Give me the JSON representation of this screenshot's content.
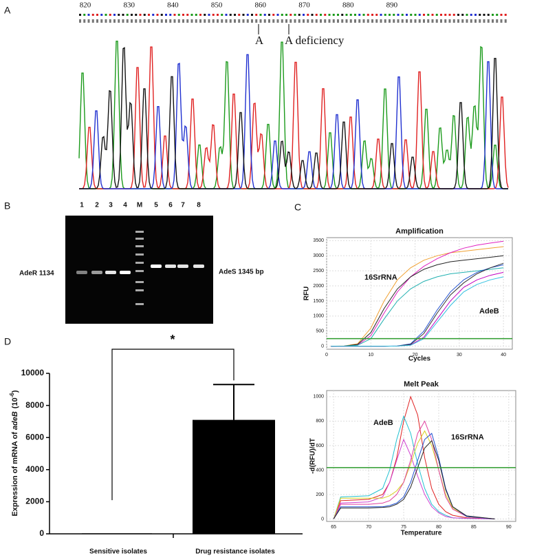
{
  "panels": {
    "a": "A",
    "b": "B",
    "c": "C",
    "d": "D"
  },
  "sequencing": {
    "positions": [
      820,
      830,
      840,
      850,
      860,
      870,
      880,
      890
    ],
    "annotations": [
      "A",
      "A deficiency"
    ]
  },
  "gel": {
    "lanes": [
      "1",
      "2",
      "3",
      "4",
      "M",
      "5",
      "6",
      "7",
      "8"
    ],
    "left_label": "AdeR 1134",
    "right_label": "AdeS 1345 bp"
  },
  "chart_data": [
    {
      "type": "line",
      "title": "Amplification",
      "x_label": "Cycles",
      "y_label": "RFU",
      "x": [
        1,
        4,
        7,
        10,
        13,
        16,
        19,
        22,
        25,
        28,
        31,
        34,
        37,
        40
      ],
      "series": [
        {
          "color": "#f0a030",
          "values": [
            0,
            10,
            80,
            600,
            1500,
            2200,
            2600,
            2850,
            3000,
            3100,
            3150,
            3200,
            3250,
            3300
          ]
        },
        {
          "color": "#e020c0",
          "values": [
            0,
            5,
            40,
            350,
            1100,
            1800,
            2300,
            2650,
            2900,
            3100,
            3250,
            3350,
            3420,
            3480
          ]
        },
        {
          "color": "#222222",
          "values": [
            0,
            5,
            60,
            450,
            1250,
            1900,
            2300,
            2550,
            2700,
            2800,
            2850,
            2900,
            2950,
            3000
          ]
        },
        {
          "color": "#20b0b0",
          "values": [
            0,
            5,
            30,
            250,
            900,
            1500,
            1900,
            2150,
            2300,
            2400,
            2450,
            2500,
            2550,
            2600
          ]
        },
        {
          "color": "#2050d0",
          "values": [
            0,
            0,
            0,
            0,
            0,
            10,
            80,
            500,
            1200,
            1800,
            2200,
            2450,
            2600,
            2700
          ]
        },
        {
          "color": "#c000c0",
          "values": [
            0,
            0,
            0,
            0,
            0,
            5,
            40,
            300,
            900,
            1500,
            1950,
            2200,
            2350,
            2450
          ]
        },
        {
          "color": "#333333",
          "values": [
            0,
            0,
            0,
            0,
            0,
            5,
            60,
            420,
            1100,
            1700,
            2100,
            2400,
            2600,
            2750
          ]
        },
        {
          "color": "#30c0e0",
          "values": [
            0,
            0,
            0,
            0,
            0,
            5,
            30,
            250,
            800,
            1350,
            1800,
            2050,
            2200,
            2300
          ]
        }
      ],
      "threshold": 250,
      "threshold_color": "#2a9a2a",
      "annotations": [
        "16SrRNA",
        "AdeB"
      ],
      "xlim": [
        0,
        42
      ],
      "ylim": [
        -100,
        3600
      ],
      "xticks": [
        0,
        10,
        20,
        30,
        40
      ],
      "yticks": [
        0,
        500,
        1000,
        1500,
        2000,
        2500,
        3000,
        3500
      ],
      "grid": true
    },
    {
      "type": "line",
      "title": "Melt Peak",
      "x_label": "Temperature",
      "y_label": "-d(RFU)/dT",
      "x": [
        65,
        66,
        70,
        72,
        73,
        74,
        75,
        76,
        77,
        78,
        79,
        80,
        81,
        82,
        84,
        88
      ],
      "series": [
        {
          "color": "#e02020",
          "values": [
            0,
            150,
            160,
            200,
            300,
            500,
            800,
            1000,
            850,
            500,
            250,
            120,
            60,
            30,
            10,
            0
          ]
        },
        {
          "color": "#20c0d0",
          "values": [
            0,
            180,
            190,
            250,
            400,
            650,
            840,
            700,
            450,
            250,
            120,
            60,
            30,
            10,
            5,
            0
          ]
        },
        {
          "color": "#d040d0",
          "values": [
            0,
            130,
            140,
            180,
            300,
            480,
            650,
            520,
            350,
            200,
            100,
            50,
            20,
            10,
            5,
            0
          ]
        },
        {
          "color": "#d8d020",
          "values": [
            0,
            170,
            170,
            170,
            190,
            230,
            300,
            450,
            620,
            720,
            600,
            400,
            200,
            90,
            20,
            0
          ]
        },
        {
          "color": "#e040a0",
          "values": [
            0,
            120,
            120,
            130,
            150,
            200,
            300,
            480,
            700,
            800,
            650,
            400,
            180,
            80,
            20,
            0
          ]
        },
        {
          "color": "#2050d0",
          "values": [
            0,
            100,
            100,
            100,
            110,
            130,
            180,
            300,
            480,
            650,
            700,
            500,
            250,
            100,
            20,
            0
          ]
        },
        {
          "color": "#222222",
          "values": [
            0,
            90,
            90,
            95,
            100,
            120,
            160,
            260,
            420,
            580,
            640,
            480,
            240,
            100,
            25,
            0
          ]
        }
      ],
      "threshold": 420,
      "threshold_color": "#2a9a2a",
      "annotations": [
        "AdeB",
        "16SrRNA"
      ],
      "xlim": [
        64,
        91
      ],
      "ylim": [
        -20,
        1050
      ],
      "xticks": [
        65,
        70,
        75,
        80,
        85,
        90
      ],
      "yticks": [
        0,
        200,
        400,
        600,
        800,
        1000
      ],
      "grid": true
    },
    {
      "type": "bar",
      "y_label": {
        "prefix": "Expression of mRNA of ",
        "gene": "adeB",
        "unit": "(10",
        "exponent": "-6",
        "close": ")"
      },
      "categories": [
        "Sensitive isolates",
        "Drug resistance isolates"
      ],
      "values": [
        30,
        7100
      ],
      "errors": [
        null,
        2200
      ],
      "color": "#000000",
      "significance": "*",
      "ylim": [
        0,
        10000
      ],
      "yticks": [
        0,
        2000,
        4000,
        6000,
        8000,
        10000
      ]
    }
  ]
}
